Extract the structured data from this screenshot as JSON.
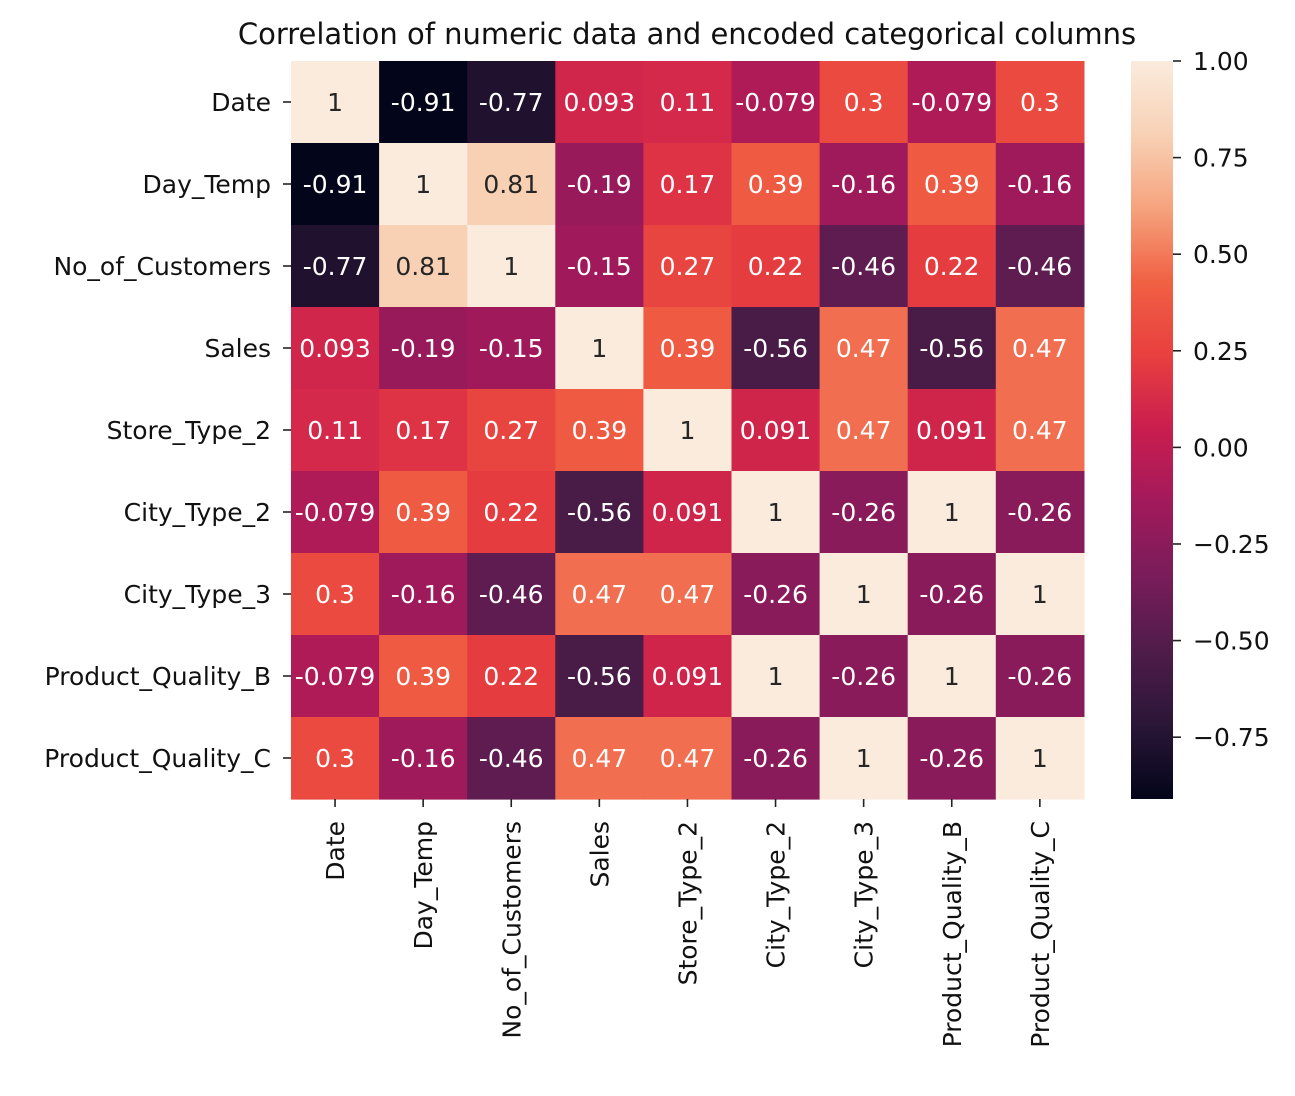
{
  "chart_data": {
    "type": "heatmap",
    "title": "Correlation of numeric data and encoded categorical columns",
    "xlabel": "",
    "ylabel": "",
    "rows": [
      "Date",
      "Day_Temp",
      "No_of_Customers",
      "Sales",
      "Store_Type_2",
      "City_Type_2",
      "City_Type_3",
      "Product_Quality_B",
      "Product_Quality_C"
    ],
    "columns": [
      "Date",
      "Day_Temp",
      "No_of_Customers",
      "Sales",
      "Store_Type_2",
      "City_Type_2",
      "City_Type_3",
      "Product_Quality_B",
      "Product_Quality_C"
    ],
    "values": [
      [
        1,
        -0.91,
        -0.77,
        0.093,
        0.11,
        -0.079,
        0.3,
        -0.079,
        0.3
      ],
      [
        -0.91,
        1,
        0.81,
        -0.19,
        0.17,
        0.39,
        -0.16,
        0.39,
        -0.16
      ],
      [
        -0.77,
        0.81,
        1,
        -0.15,
        0.27,
        0.22,
        -0.46,
        0.22,
        -0.46
      ],
      [
        0.093,
        -0.19,
        -0.15,
        1,
        0.39,
        -0.56,
        0.47,
        -0.56,
        0.47
      ],
      [
        0.11,
        0.17,
        0.27,
        0.39,
        1,
        0.091,
        0.47,
        0.091,
        0.47
      ],
      [
        -0.079,
        0.39,
        0.22,
        -0.56,
        0.091,
        1,
        -0.26,
        1,
        -0.26
      ],
      [
        0.3,
        -0.16,
        -0.46,
        0.47,
        0.47,
        -0.26,
        1,
        -0.26,
        1
      ],
      [
        -0.079,
        0.39,
        0.22,
        -0.56,
        0.091,
        1,
        -0.26,
        1,
        -0.26
      ],
      [
        0.3,
        -0.16,
        -0.46,
        0.47,
        0.47,
        -0.26,
        1,
        -0.26,
        1
      ]
    ],
    "annotations": [
      [
        "1",
        "-0.91",
        "-0.77",
        "0.093",
        "0.11",
        "-0.079",
        "0.3",
        "-0.079",
        "0.3"
      ],
      [
        "-0.91",
        "1",
        "0.81",
        "-0.19",
        "0.17",
        "0.39",
        "-0.16",
        "0.39",
        "-0.16"
      ],
      [
        "-0.77",
        "0.81",
        "1",
        "-0.15",
        "0.27",
        "0.22",
        "-0.46",
        "0.22",
        "-0.46"
      ],
      [
        "0.093",
        "-0.19",
        "-0.15",
        "1",
        "0.39",
        "-0.56",
        "0.47",
        "-0.56",
        "0.47"
      ],
      [
        "0.11",
        "0.17",
        "0.27",
        "0.39",
        "1",
        "0.091",
        "0.47",
        "0.091",
        "0.47"
      ],
      [
        "-0.079",
        "0.39",
        "0.22",
        "-0.56",
        "0.091",
        "1",
        "-0.26",
        "1",
        "-0.26"
      ],
      [
        "0.3",
        "-0.16",
        "-0.46",
        "0.47",
        "0.47",
        "-0.26",
        "1",
        "-0.26",
        "1"
      ],
      [
        "-0.079",
        "0.39",
        "0.22",
        "-0.56",
        "0.091",
        "1",
        "-0.26",
        "1",
        "-0.26"
      ],
      [
        "0.3",
        "-0.16",
        "-0.46",
        "0.47",
        "0.47",
        "-0.26",
        "1",
        "-0.26",
        "1"
      ]
    ],
    "colorbar": {
      "min": -0.91,
      "max": 1.0,
      "ticks": [
        1.0,
        0.75,
        0.5,
        0.25,
        0.0,
        -0.25,
        -0.5,
        -0.75
      ],
      "tick_labels": [
        "1.00",
        "0.75",
        "0.50",
        "0.25",
        "0.00",
        "−0.25",
        "−0.50",
        "−0.75"
      ],
      "colormap": "rocket",
      "color_stops": [
        "#03051a",
        "#2a1637",
        "#4f1c4a",
        "#781c5a",
        "#a11a5b",
        "#c91d4f",
        "#e83f3f",
        "#f06043",
        "#f5a37d",
        "#f8d1b5",
        "#faebdd"
      ]
    },
    "annotation_colors": {
      "on_light": "#262626",
      "on_dark": "#ffffff"
    },
    "grid": false,
    "legend": "colorbar-right"
  }
}
